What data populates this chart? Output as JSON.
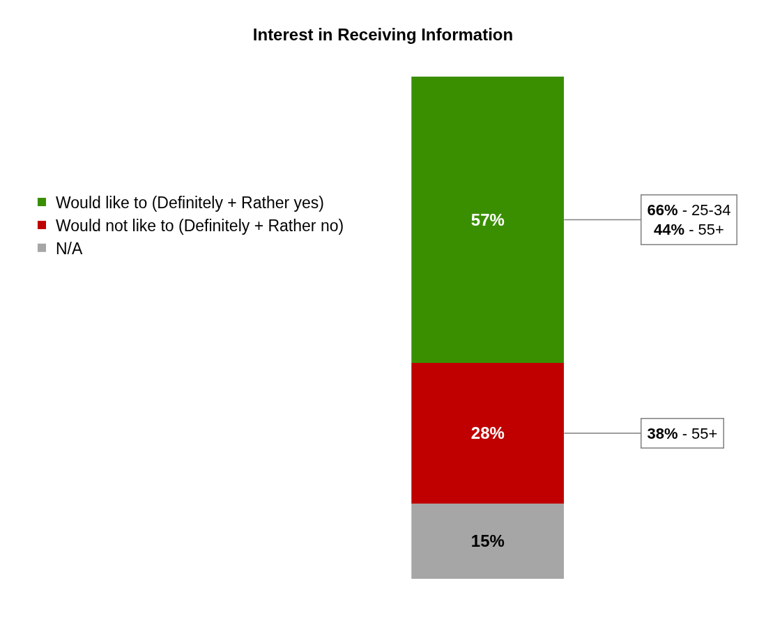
{
  "chart_data": {
    "type": "bar",
    "title": "Interest in Receiving Information",
    "stacked": true,
    "categories": [
      null
    ],
    "legend": "left",
    "series": [
      {
        "name": "N/A",
        "color": "#a6a6a6",
        "values": [
          15
        ],
        "value_labels": [
          "15%"
        ]
      },
      {
        "name": "Would not like to (Definitely + Rather no)",
        "color": "#c00000",
        "values": [
          28
        ],
        "value_labels": [
          "28%"
        ]
      },
      {
        "name": "Would like to (Definitely + Rather yes)",
        "color": "#3a8f00",
        "values": [
          57
        ],
        "value_labels": [
          "57%"
        ]
      }
    ],
    "annotations": [
      "66% - 25-34\n44% - 55+",
      "38% - 55+"
    ]
  }
}
